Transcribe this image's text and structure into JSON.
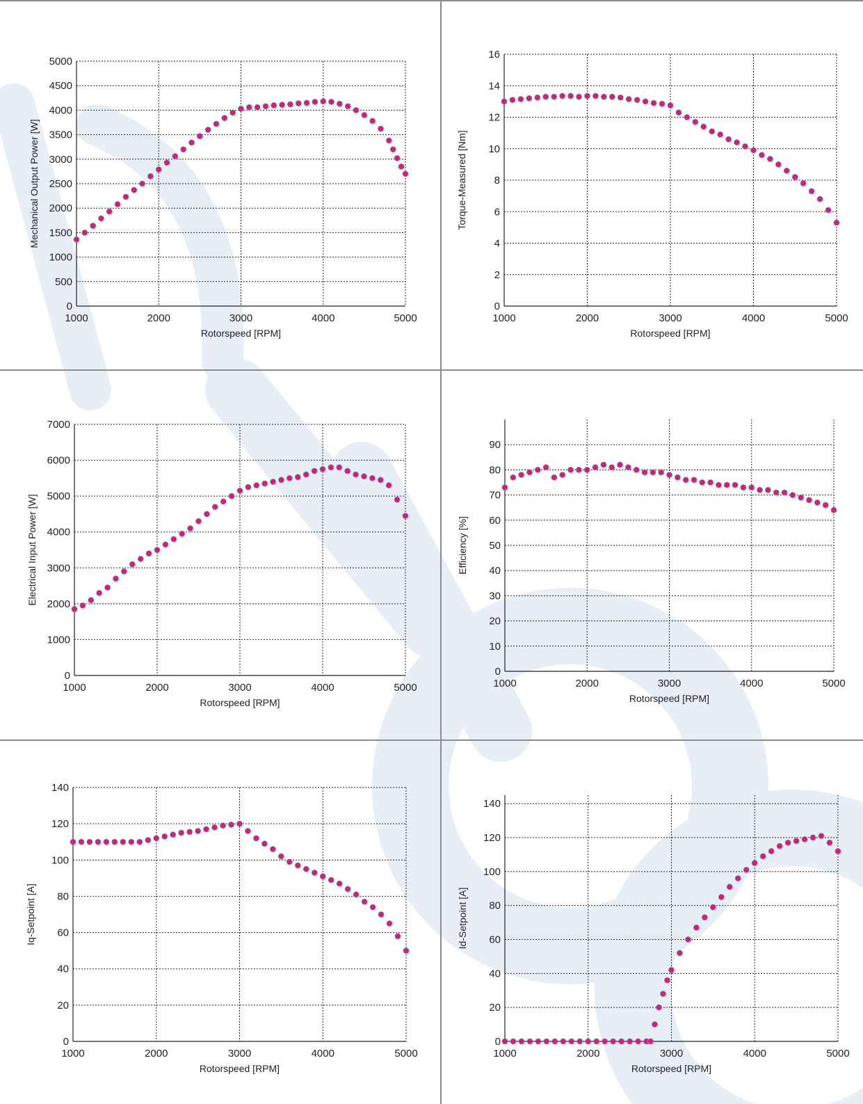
{
  "colors": {
    "marker_fill": "#d81b7d",
    "marker_edge": "#7a8a99",
    "grid": "#222222",
    "axis": "#222222",
    "frame": "#8c8c8c",
    "watermark": "#e8eef5"
  },
  "charts": [
    {
      "type": "scatter",
      "xlabel": "Rotorspeed [RPM]",
      "ylabel": "Mechanical Output Power [W]",
      "xlim": [
        1000,
        5000
      ],
      "ylim": [
        0,
        5000
      ],
      "xticks": [
        1000,
        2000,
        3000,
        4000,
        5000
      ],
      "yticks": [
        0,
        500,
        1000,
        1500,
        2000,
        2500,
        3000,
        3500,
        4000,
        4500,
        5000
      ],
      "grid": true
    },
    {
      "type": "scatter",
      "xlabel": "Rotorspeed [RPM]",
      "ylabel": "Torque-Measured [Nm]",
      "xlim": [
        1000,
        5000
      ],
      "ylim": [
        0,
        16
      ],
      "xticks": [
        1000,
        2000,
        3000,
        4000,
        5000
      ],
      "yticks": [
        0,
        2,
        4,
        6,
        8,
        10,
        12,
        14,
        16
      ],
      "grid": true
    },
    {
      "type": "scatter",
      "xlabel": "Rotorspeed [RPM]",
      "ylabel": "Electrical Input Power [W]",
      "xlim": [
        1000,
        5000
      ],
      "ylim": [
        0,
        7000
      ],
      "xticks": [
        1000,
        2000,
        3000,
        4000,
        5000
      ],
      "yticks": [
        0,
        1000,
        2000,
        3000,
        4000,
        5000,
        6000,
        7000
      ],
      "grid": true
    },
    {
      "type": "scatter",
      "xlabel": "Rotorspeed [RPM]",
      "ylabel": "Efficiency [%]",
      "xlim": [
        1000,
        5000
      ],
      "ylim": [
        0,
        100
      ],
      "xticks": [
        1000,
        2000,
        3000,
        4000,
        5000
      ],
      "yticks": [
        0,
        10,
        20,
        30,
        40,
        50,
        60,
        70,
        80,
        90
      ],
      "grid": true
    },
    {
      "type": "scatter",
      "xlabel": "Rotorspeed [RPM]",
      "ylabel": "Iq-Setpoint [A]",
      "xlim": [
        1000,
        5000
      ],
      "ylim": [
        0,
        140
      ],
      "xticks": [
        1000,
        2000,
        3000,
        4000,
        5000
      ],
      "yticks": [
        0,
        20,
        40,
        60,
        80,
        100,
        120,
        140
      ],
      "grid": true
    },
    {
      "type": "scatter",
      "xlabel": "Rotorspeed [RPM]",
      "ylabel": "Id-Setpoint [A]",
      "xlim": [
        1000,
        5000
      ],
      "ylim": [
        0,
        145
      ],
      "xticks": [
        1000,
        2000,
        3000,
        4000,
        5000
      ],
      "yticks": [
        0,
        20,
        40,
        60,
        80,
        100,
        120,
        140
      ],
      "grid": true
    }
  ],
  "chart_data": [
    {
      "type": "scatter",
      "xlabel": "Rotorspeed [RPM]",
      "ylabel": "Mechanical Output Power [W]",
      "xlim": [
        1000,
        5000
      ],
      "ylim": [
        0,
        5000
      ],
      "points": [
        [
          1000,
          1360
        ],
        [
          1100,
          1500
        ],
        [
          1200,
          1640
        ],
        [
          1300,
          1790
        ],
        [
          1400,
          1930
        ],
        [
          1500,
          2080
        ],
        [
          1600,
          2230
        ],
        [
          1700,
          2370
        ],
        [
          1800,
          2500
        ],
        [
          1900,
          2650
        ],
        [
          2000,
          2790
        ],
        [
          2100,
          2930
        ],
        [
          2200,
          3060
        ],
        [
          2300,
          3200
        ],
        [
          2400,
          3340
        ],
        [
          2500,
          3470
        ],
        [
          2600,
          3600
        ],
        [
          2700,
          3720
        ],
        [
          2800,
          3840
        ],
        [
          2900,
          3950
        ],
        [
          3000,
          4030
        ],
        [
          3100,
          4060
        ],
        [
          3200,
          4060
        ],
        [
          3300,
          4080
        ],
        [
          3400,
          4100
        ],
        [
          3500,
          4110
        ],
        [
          3600,
          4120
        ],
        [
          3700,
          4140
        ],
        [
          3800,
          4150
        ],
        [
          3900,
          4170
        ],
        [
          4000,
          4180
        ],
        [
          4100,
          4170
        ],
        [
          4200,
          4130
        ],
        [
          4300,
          4080
        ],
        [
          4400,
          4000
        ],
        [
          4500,
          3900
        ],
        [
          4600,
          3780
        ],
        [
          4700,
          3620
        ],
        [
          4800,
          3380
        ],
        [
          4850,
          3200
        ],
        [
          4900,
          3020
        ],
        [
          4950,
          2850
        ],
        [
          5000,
          2700
        ]
      ]
    },
    {
      "type": "scatter",
      "xlabel": "Rotorspeed [RPM]",
      "ylabel": "Torque-Measured [Nm]",
      "xlim": [
        1000,
        5000
      ],
      "ylim": [
        0,
        16
      ],
      "points": [
        [
          1000,
          13.0
        ],
        [
          1100,
          13.1
        ],
        [
          1200,
          13.15
        ],
        [
          1300,
          13.2
        ],
        [
          1400,
          13.25
        ],
        [
          1500,
          13.3
        ],
        [
          1600,
          13.3
        ],
        [
          1700,
          13.35
        ],
        [
          1800,
          13.35
        ],
        [
          1900,
          13.3
        ],
        [
          2000,
          13.35
        ],
        [
          2100,
          13.35
        ],
        [
          2200,
          13.3
        ],
        [
          2300,
          13.3
        ],
        [
          2400,
          13.25
        ],
        [
          2500,
          13.15
        ],
        [
          2600,
          13.1
        ],
        [
          2700,
          13.0
        ],
        [
          2800,
          12.9
        ],
        [
          2900,
          12.85
        ],
        [
          3000,
          12.75
        ],
        [
          3100,
          12.3
        ],
        [
          3200,
          12.0
        ],
        [
          3300,
          11.7
        ],
        [
          3400,
          11.4
        ],
        [
          3500,
          11.1
        ],
        [
          3600,
          10.9
        ],
        [
          3700,
          10.6
        ],
        [
          3800,
          10.4
        ],
        [
          3900,
          10.15
        ],
        [
          4000,
          9.9
        ],
        [
          4100,
          9.6
        ],
        [
          4200,
          9.35
        ],
        [
          4300,
          9.0
        ],
        [
          4400,
          8.6
        ],
        [
          4500,
          8.2
        ],
        [
          4600,
          7.8
        ],
        [
          4700,
          7.3
        ],
        [
          4800,
          6.8
        ],
        [
          4900,
          6.1
        ],
        [
          5000,
          5.3
        ]
      ]
    },
    {
      "type": "scatter",
      "xlabel": "Rotorspeed [RPM]",
      "ylabel": "Electrical Input Power [W]",
      "xlim": [
        1000,
        5000
      ],
      "ylim": [
        0,
        7000
      ],
      "points": [
        [
          1000,
          1850
        ],
        [
          1100,
          1950
        ],
        [
          1200,
          2100
        ],
        [
          1300,
          2300
        ],
        [
          1400,
          2450
        ],
        [
          1500,
          2700
        ],
        [
          1600,
          2900
        ],
        [
          1700,
          3100
        ],
        [
          1800,
          3250
        ],
        [
          1900,
          3400
        ],
        [
          2000,
          3500
        ],
        [
          2100,
          3650
        ],
        [
          2200,
          3800
        ],
        [
          2300,
          3950
        ],
        [
          2400,
          4100
        ],
        [
          2500,
          4300
        ],
        [
          2600,
          4500
        ],
        [
          2700,
          4700
        ],
        [
          2800,
          4850
        ],
        [
          2900,
          5000
        ],
        [
          3000,
          5150
        ],
        [
          3100,
          5250
        ],
        [
          3200,
          5300
        ],
        [
          3300,
          5350
        ],
        [
          3400,
          5400
        ],
        [
          3500,
          5450
        ],
        [
          3600,
          5500
        ],
        [
          3700,
          5530
        ],
        [
          3800,
          5600
        ],
        [
          3900,
          5700
        ],
        [
          4000,
          5750
        ],
        [
          4100,
          5800
        ],
        [
          4200,
          5800
        ],
        [
          4300,
          5700
        ],
        [
          4400,
          5600
        ],
        [
          4500,
          5550
        ],
        [
          4600,
          5500
        ],
        [
          4700,
          5450
        ],
        [
          4800,
          5300
        ],
        [
          4900,
          4900
        ],
        [
          5000,
          4450
        ]
      ]
    },
    {
      "type": "scatter",
      "xlabel": "Rotorspeed [RPM]",
      "ylabel": "Efficiency [%]",
      "xlim": [
        1000,
        5000
      ],
      "ylim": [
        0,
        100
      ],
      "points": [
        [
          1000,
          73
        ],
        [
          1100,
          77
        ],
        [
          1200,
          78
        ],
        [
          1300,
          79
        ],
        [
          1400,
          80
        ],
        [
          1500,
          81
        ],
        [
          1600,
          77
        ],
        [
          1700,
          78
        ],
        [
          1800,
          80
        ],
        [
          1900,
          80
        ],
        [
          2000,
          80
        ],
        [
          2100,
          81
        ],
        [
          2200,
          82
        ],
        [
          2300,
          81
        ],
        [
          2400,
          82
        ],
        [
          2500,
          81
        ],
        [
          2600,
          80
        ],
        [
          2700,
          79
        ],
        [
          2800,
          79
        ],
        [
          2900,
          79
        ],
        [
          3000,
          78
        ],
        [
          3100,
          77
        ],
        [
          3200,
          76
        ],
        [
          3300,
          76
        ],
        [
          3400,
          75
        ],
        [
          3500,
          75
        ],
        [
          3600,
          74
        ],
        [
          3700,
          74
        ],
        [
          3800,
          74
        ],
        [
          3900,
          73
        ],
        [
          4000,
          73
        ],
        [
          4100,
          72
        ],
        [
          4200,
          72
        ],
        [
          4300,
          71
        ],
        [
          4400,
          71
        ],
        [
          4500,
          70
        ],
        [
          4600,
          69
        ],
        [
          4700,
          68
        ],
        [
          4800,
          67
        ],
        [
          4900,
          66
        ],
        [
          5000,
          64
        ]
      ]
    },
    {
      "type": "scatter",
      "xlabel": "Rotorspeed [RPM]",
      "ylabel": "Iq-Setpoint [A]",
      "xlim": [
        1000,
        5000
      ],
      "ylim": [
        0,
        140
      ],
      "points": [
        [
          1000,
          110
        ],
        [
          1100,
          110
        ],
        [
          1200,
          110
        ],
        [
          1300,
          110
        ],
        [
          1400,
          110
        ],
        [
          1500,
          110
        ],
        [
          1600,
          110
        ],
        [
          1700,
          110
        ],
        [
          1800,
          110
        ],
        [
          1900,
          111
        ],
        [
          2000,
          112
        ],
        [
          2100,
          113
        ],
        [
          2200,
          114
        ],
        [
          2300,
          115
        ],
        [
          2400,
          115.5
        ],
        [
          2500,
          116
        ],
        [
          2600,
          117
        ],
        [
          2700,
          118
        ],
        [
          2800,
          119
        ],
        [
          2900,
          119.5
        ],
        [
          3000,
          120
        ],
        [
          3100,
          116
        ],
        [
          3200,
          112
        ],
        [
          3300,
          109
        ],
        [
          3400,
          106
        ],
        [
          3500,
          102
        ],
        [
          3600,
          99
        ],
        [
          3700,
          97
        ],
        [
          3800,
          95
        ],
        [
          3900,
          93
        ],
        [
          4000,
          91
        ],
        [
          4100,
          89
        ],
        [
          4200,
          87
        ],
        [
          4300,
          84
        ],
        [
          4400,
          81
        ],
        [
          4500,
          77
        ],
        [
          4600,
          74
        ],
        [
          4700,
          70
        ],
        [
          4800,
          65
        ],
        [
          4900,
          58
        ],
        [
          5000,
          50
        ]
      ]
    },
    {
      "type": "scatter",
      "xlabel": "Rotorspeed [RPM]",
      "ylabel": "Id-Setpoint [A]",
      "xlim": [
        1000,
        5000
      ],
      "ylim": [
        0,
        145
      ],
      "points": [
        [
          1000,
          0
        ],
        [
          1100,
          0
        ],
        [
          1200,
          0
        ],
        [
          1300,
          0
        ],
        [
          1400,
          0
        ],
        [
          1500,
          0
        ],
        [
          1600,
          0
        ],
        [
          1700,
          0
        ],
        [
          1800,
          0
        ],
        [
          1900,
          0
        ],
        [
          2000,
          0
        ],
        [
          2100,
          0
        ],
        [
          2200,
          0
        ],
        [
          2300,
          0
        ],
        [
          2400,
          0
        ],
        [
          2500,
          0
        ],
        [
          2600,
          0
        ],
        [
          2700,
          0
        ],
        [
          2750,
          0
        ],
        [
          2800,
          10
        ],
        [
          2850,
          20
        ],
        [
          2900,
          28
        ],
        [
          2950,
          36
        ],
        [
          3000,
          42
        ],
        [
          3100,
          52
        ],
        [
          3200,
          60
        ],
        [
          3300,
          67
        ],
        [
          3400,
          73
        ],
        [
          3500,
          79
        ],
        [
          3600,
          85
        ],
        [
          3700,
          91
        ],
        [
          3800,
          96
        ],
        [
          3900,
          101
        ],
        [
          4000,
          105
        ],
        [
          4100,
          109
        ],
        [
          4200,
          112
        ],
        [
          4300,
          115
        ],
        [
          4400,
          117
        ],
        [
          4500,
          118
        ],
        [
          4600,
          119
        ],
        [
          4700,
          120
        ],
        [
          4800,
          121
        ],
        [
          4900,
          117
        ],
        [
          5000,
          112
        ]
      ]
    }
  ]
}
